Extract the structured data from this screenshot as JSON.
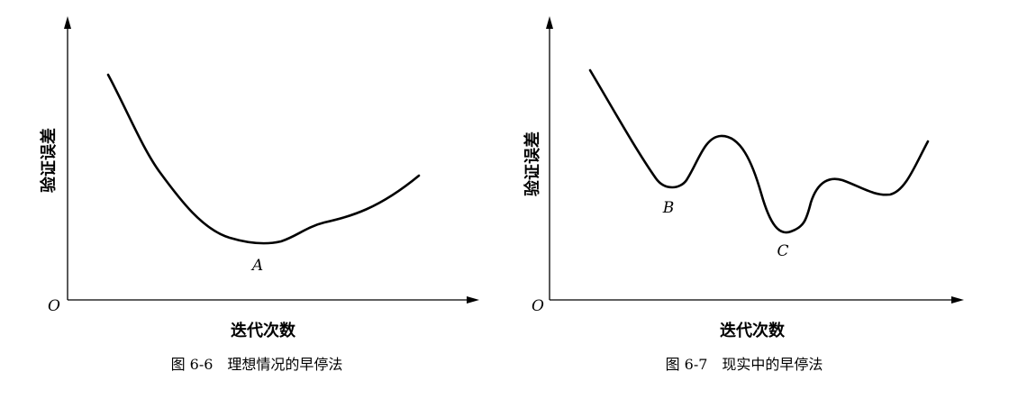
{
  "figures": [
    {
      "y_axis_label": "验证误差",
      "origin": "O",
      "x_axis_label": "迭代次数",
      "point_labels": [
        "A"
      ],
      "caption": "图 6-6　理想情况的早停法"
    },
    {
      "y_axis_label": "验证误差",
      "origin": "O",
      "x_axis_label": "迭代次数",
      "point_labels": [
        "B",
        "C"
      ],
      "caption": "图 6-7　现实中的早停法"
    }
  ]
}
